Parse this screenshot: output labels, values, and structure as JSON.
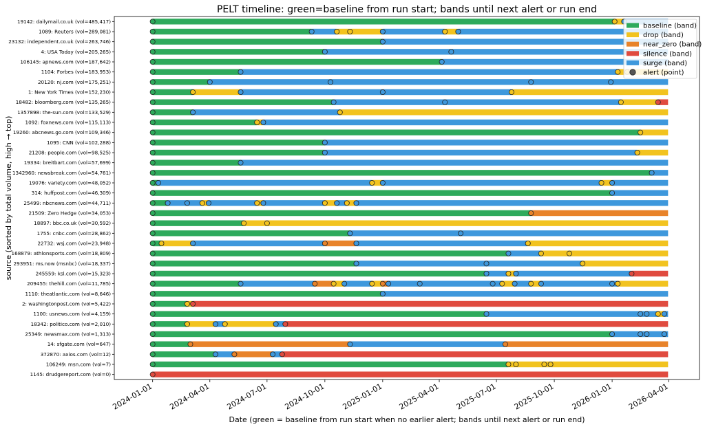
{
  "chart_data": {
    "type": "timeline",
    "title": "PELT timeline: green=baseline from run start; bands until next alert or run end",
    "xlabel": "Date (green = baseline from run start when no earlier alert; bands until next alert or run end)",
    "ylabel": "source (sorted by total volume, high → top)",
    "x_range": [
      "2023-11-01",
      "2026-05-20"
    ],
    "run_start": "2024-01-01",
    "run_end": "2026-03-31",
    "x_ticks": [
      "2024-01-01",
      "2024-04-01",
      "2024-07-01",
      "2024-10-01",
      "2025-01-01",
      "2025-04-01",
      "2025-07-01",
      "2025-10-01",
      "2026-01-01",
      "2026-04-01"
    ],
    "colors": {
      "baseline": "#2eaa5c",
      "drop": "#f2c31f",
      "near_zero": "#e8832a",
      "silence": "#e04b3f",
      "surge": "#3e98dc"
    },
    "legend": {
      "position": "top-right",
      "entries": [
        {
          "key": "baseline",
          "label": "baseline (band)"
        },
        {
          "key": "drop",
          "label": "drop (band)"
        },
        {
          "key": "near_zero",
          "label": "near_zero (band)"
        },
        {
          "key": "silence",
          "label": "silence (band)"
        },
        {
          "key": "surge",
          "label": "surge (band)"
        },
        {
          "key": "alert",
          "label": "alert (point)"
        }
      ]
    },
    "rows": [
      {
        "label": "19142: dailymail.co.uk (vol=485,417)",
        "alerts": [
          [
            "2024-01-01",
            "baseline"
          ],
          [
            "2026-01-05",
            "drop"
          ],
          [
            "2026-01-20",
            "surge"
          ]
        ]
      },
      {
        "label": "1089: Reuters (vol=289,081)",
        "alerts": [
          [
            "2024-01-01",
            "baseline"
          ],
          [
            "2024-09-10",
            "surge"
          ],
          [
            "2024-10-20",
            "drop"
          ],
          [
            "2024-11-10",
            "drop"
          ],
          [
            "2025-01-01",
            "surge"
          ],
          [
            "2025-04-10",
            "drop"
          ],
          [
            "2025-05-01",
            "surge"
          ]
        ]
      },
      {
        "label": "23132: independent.co.uk (vol=263,746)",
        "alerts": [
          [
            "2024-01-01",
            "baseline"
          ],
          [
            "2025-01-01",
            "surge"
          ]
        ]
      },
      {
        "label": "4: USA Today (vol=205,265)",
        "alerts": [
          [
            "2024-01-01",
            "baseline"
          ],
          [
            "2024-10-01",
            "surge"
          ],
          [
            "2025-04-20",
            "surge"
          ]
        ]
      },
      {
        "label": "106145: apnews.com (vol=187,642)",
        "alerts": [
          [
            "2024-01-01",
            "baseline"
          ],
          [
            "2025-04-05",
            "surge"
          ]
        ]
      },
      {
        "label": "1104: Forbes (vol=183,953)",
        "alerts": [
          [
            "2024-01-01",
            "baseline"
          ],
          [
            "2024-05-20",
            "surge"
          ],
          [
            "2026-01-10",
            "drop"
          ],
          [
            "2026-01-25",
            "drop"
          ]
        ]
      },
      {
        "label": "20120: nj.com (vol=175,251)",
        "alerts": [
          [
            "2024-01-01",
            "baseline"
          ],
          [
            "2024-04-01",
            "surge"
          ],
          [
            "2024-10-10",
            "surge"
          ],
          [
            "2025-08-25",
            "surge"
          ],
          [
            "2025-12-30",
            "surge"
          ]
        ]
      },
      {
        "label": "1: New York Times (vol=152,230)",
        "alerts": [
          [
            "2024-01-01",
            "baseline"
          ],
          [
            "2024-03-05",
            "drop"
          ],
          [
            "2024-05-20",
            "surge"
          ],
          [
            "2025-01-01",
            "surge"
          ],
          [
            "2025-07-25",
            "drop"
          ]
        ]
      },
      {
        "label": "18482: bloomberg.com (vol=135,265)",
        "alerts": [
          [
            "2024-01-01",
            "baseline"
          ],
          [
            "2024-10-15",
            "surge"
          ],
          [
            "2025-04-10",
            "surge"
          ],
          [
            "2026-01-15",
            "drop"
          ],
          [
            "2026-03-15",
            "silence"
          ]
        ]
      },
      {
        "label": "1357898: the-sun.com (vol=133,529)",
        "alerts": [
          [
            "2024-01-01",
            "baseline"
          ],
          [
            "2024-03-05",
            "surge"
          ],
          [
            "2024-10-25",
            "drop"
          ]
        ]
      },
      {
        "label": "1092: foxnews.com (vol=115,113)",
        "alerts": [
          [
            "2024-01-01",
            "baseline"
          ],
          [
            "2024-06-15",
            "drop"
          ],
          [
            "2024-06-25",
            "surge"
          ]
        ]
      },
      {
        "label": "19260: abcnews.go.com (vol=109,346)",
        "alerts": [
          [
            "2024-01-01",
            "baseline"
          ],
          [
            "2026-02-15",
            "drop"
          ]
        ]
      },
      {
        "label": "1095: CNN (vol=102,288)",
        "alerts": [
          [
            "2024-01-01",
            "baseline"
          ],
          [
            "2024-10-01",
            "surge"
          ]
        ]
      },
      {
        "label": "21208: people.com (vol=98,525)",
        "alerts": [
          [
            "2024-01-01",
            "baseline"
          ],
          [
            "2024-10-01",
            "surge"
          ],
          [
            "2026-02-10",
            "drop"
          ]
        ]
      },
      {
        "label": "19334: breitbart.com (vol=57,699)",
        "alerts": [
          [
            "2024-01-01",
            "baseline"
          ],
          [
            "2024-05-20",
            "surge"
          ]
        ]
      },
      {
        "label": "1342960: newsbreak.com (vol=54,761)",
        "alerts": [
          [
            "2024-01-01",
            "baseline"
          ],
          [
            "2026-03-05",
            "surge"
          ]
        ]
      },
      {
        "label": "19076: variety.com (vol=48,052)",
        "alerts": [
          [
            "2024-01-01",
            "baseline"
          ],
          [
            "2024-01-10",
            "surge"
          ],
          [
            "2024-12-15",
            "drop"
          ],
          [
            "2025-01-01",
            "surge"
          ],
          [
            "2025-12-15",
            "drop"
          ],
          [
            "2026-01-01",
            "surge"
          ]
        ]
      },
      {
        "label": "314: huffpost.com (vol=46,309)",
        "alerts": [
          [
            "2024-01-01",
            "baseline"
          ],
          [
            "2026-01-01",
            "surge"
          ]
        ]
      },
      {
        "label": "25499: nbcnews.com (vol=44,711)",
        "alerts": [
          [
            "2024-01-01",
            "baseline"
          ],
          [
            "2024-01-25",
            "surge"
          ],
          [
            "2024-02-25",
            "surge"
          ],
          [
            "2024-03-20",
            "drop"
          ],
          [
            "2024-03-30",
            "surge"
          ],
          [
            "2024-06-15",
            "drop"
          ],
          [
            "2024-06-25",
            "surge"
          ],
          [
            "2024-10-01",
            "drop"
          ],
          [
            "2024-10-20",
            "surge"
          ],
          [
            "2024-11-05",
            "drop"
          ],
          [
            "2024-11-20",
            "surge"
          ]
        ]
      },
      {
        "label": "21509: Zero Hedge (vol=34,053)",
        "alerts": [
          [
            "2024-01-01",
            "baseline"
          ],
          [
            "2025-08-25",
            "near_zero"
          ]
        ]
      },
      {
        "label": "18897: bbc.co.uk (vol=30,592)",
        "alerts": [
          [
            "2024-01-01",
            "baseline"
          ],
          [
            "2024-05-25",
            "drop"
          ],
          [
            "2024-07-01",
            "drop"
          ]
        ]
      },
      {
        "label": "1755: cnbc.com (vol=28,862)",
        "alerts": [
          [
            "2024-01-01",
            "baseline"
          ],
          [
            "2024-11-10",
            "surge"
          ],
          [
            "2025-05-05",
            "surge"
          ]
        ]
      },
      {
        "label": "22732: wsj.com (vol=23,948)",
        "alerts": [
          [
            "2024-01-01",
            "baseline"
          ],
          [
            "2024-01-15",
            "drop"
          ],
          [
            "2024-03-05",
            "surge"
          ],
          [
            "2024-10-01",
            "near_zero"
          ],
          [
            "2024-11-20",
            "surge"
          ],
          [
            "2025-08-20",
            "drop"
          ]
        ]
      },
      {
        "label": "168879: athlonsports.com (vol=18,809)",
        "alerts": [
          [
            "2024-01-01",
            "baseline"
          ],
          [
            "2025-07-20",
            "surge"
          ],
          [
            "2025-09-10",
            "drop"
          ],
          [
            "2025-10-25",
            "drop"
          ]
        ]
      },
      {
        "label": "293951: ms.now (msnbc) (vol=18,337)",
        "alerts": [
          [
            "2024-01-01",
            "baseline"
          ],
          [
            "2024-11-20",
            "surge"
          ],
          [
            "2025-06-15",
            "surge"
          ],
          [
            "2025-11-15",
            "drop"
          ]
        ]
      },
      {
        "label": "245559: ksl.com (vol=15,323)",
        "alerts": [
          [
            "2024-01-01",
            "baseline"
          ],
          [
            "2025-06-15",
            "surge"
          ],
          [
            "2025-07-20",
            "drop"
          ],
          [
            "2025-08-01",
            "surge"
          ],
          [
            "2026-02-01",
            "silence"
          ]
        ]
      },
      {
        "label": "209455: thehill.com (vol=11,785)",
        "alerts": [
          [
            "2024-01-01",
            "baseline"
          ],
          [
            "2024-05-20",
            "surge"
          ],
          [
            "2024-09-15",
            "near_zero"
          ],
          [
            "2024-10-15",
            "drop"
          ],
          [
            "2024-11-01",
            "surge"
          ],
          [
            "2024-12-15",
            "drop"
          ],
          [
            "2025-01-10",
            "surge"
          ],
          [
            "2025-01-01",
            "near_zero"
          ],
          [
            "2025-03-01",
            "surge"
          ],
          [
            "2025-06-25",
            "surge"
          ],
          [
            "2025-07-10",
            "drop"
          ],
          [
            "2025-07-30",
            "surge"
          ],
          [
            "2025-08-25",
            "drop"
          ],
          [
            "2025-09-10",
            "surge"
          ],
          [
            "2026-01-01",
            "surge"
          ],
          [
            "2026-01-10",
            "drop"
          ]
        ]
      },
      {
        "label": "1110: theatlantic.com (vol=8,646)",
        "alerts": [
          [
            "2024-01-01",
            "baseline"
          ],
          [
            "2025-01-01",
            "surge"
          ]
        ]
      },
      {
        "label": "2: washingtonpost.com (vol=5,422)",
        "alerts": [
          [
            "2024-01-01",
            "baseline"
          ],
          [
            "2024-02-25",
            "drop"
          ],
          [
            "2024-03-05",
            "silence"
          ]
        ]
      },
      {
        "label": "1100: usnews.com (vol=4,159)",
        "alerts": [
          [
            "2024-01-01",
            "baseline"
          ],
          [
            "2025-06-15",
            "surge"
          ],
          [
            "2026-02-15",
            "surge"
          ],
          [
            "2026-02-25",
            "surge"
          ],
          [
            "2026-03-15",
            "drop"
          ],
          [
            "2026-03-25",
            "surge"
          ]
        ]
      },
      {
        "label": "18342: politico.com (vol=2,010)",
        "alerts": [
          [
            "2024-01-01",
            "baseline"
          ],
          [
            "2024-02-25",
            "drop"
          ],
          [
            "2024-04-10",
            "surge"
          ],
          [
            "2024-04-25",
            "drop"
          ],
          [
            "2024-07-15",
            "surge"
          ],
          [
            "2024-07-30",
            "silence"
          ]
        ]
      },
      {
        "label": "25349: newsmax.com (vol=1,313)",
        "alerts": [
          [
            "2024-01-01",
            "baseline"
          ],
          [
            "2026-01-01",
            "surge"
          ],
          [
            "2026-02-15",
            "surge"
          ],
          [
            "2026-02-25",
            "surge"
          ],
          [
            "2026-03-25",
            "surge"
          ]
        ]
      },
      {
        "label": "14: sfgate.com (vol=647)",
        "alerts": [
          [
            "2024-01-01",
            "baseline"
          ],
          [
            "2024-03-01",
            "near_zero"
          ],
          [
            "2024-11-10",
            "surge"
          ],
          [
            "2025-07-15",
            "near_zero"
          ]
        ]
      },
      {
        "label": "372870: axios.com (vol=12)",
        "alerts": [
          [
            "2024-01-01",
            "baseline"
          ],
          [
            "2024-04-10",
            "surge"
          ],
          [
            "2024-05-10",
            "near_zero"
          ],
          [
            "2024-07-10",
            "surge"
          ],
          [
            "2024-07-25",
            "silence"
          ]
        ]
      },
      {
        "label": "106249: msn.com (vol=7)",
        "alerts": [
          [
            "2024-01-01",
            "baseline"
          ],
          [
            "2025-07-20",
            "drop"
          ],
          [
            "2025-08-01",
            "drop"
          ],
          [
            "2025-09-15",
            "drop"
          ],
          [
            "2025-09-25",
            "drop"
          ]
        ]
      },
      {
        "label": "1145: drudgereport.com (vol=0)",
        "alerts": [
          [
            "2024-01-01",
            "silence"
          ]
        ]
      }
    ]
  }
}
